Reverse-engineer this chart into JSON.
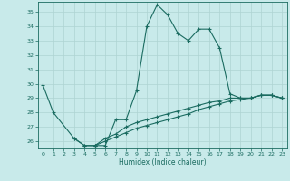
{
  "xlabel": "Humidex (Indice chaleur)",
  "bg_color": "#c8eaea",
  "grid_color": "#aed4d2",
  "line_color": "#1a6b60",
  "xlim": [
    -0.5,
    23.5
  ],
  "ylim": [
    25.5,
    35.7
  ],
  "yticks": [
    26,
    27,
    28,
    29,
    30,
    31,
    32,
    33,
    34,
    35
  ],
  "xticks": [
    0,
    1,
    2,
    3,
    4,
    5,
    6,
    7,
    8,
    9,
    10,
    11,
    12,
    13,
    14,
    15,
    16,
    17,
    18,
    19,
    20,
    21,
    22,
    23
  ],
  "series1_x": [
    0,
    1,
    3,
    4,
    5,
    6,
    7,
    8,
    9,
    10,
    11,
    12,
    13,
    14,
    15,
    16,
    17,
    18,
    19,
    20,
    21,
    22,
    23
  ],
  "series1_y": [
    29.9,
    28.0,
    26.2,
    25.7,
    25.7,
    25.7,
    27.5,
    27.5,
    29.5,
    34.0,
    35.5,
    34.8,
    33.5,
    33.0,
    33.8,
    33.8,
    32.5,
    29.3,
    29.0,
    29.0,
    29.2,
    29.2,
    29.0
  ],
  "series2_x": [
    3,
    4,
    5,
    6,
    7,
    8,
    9,
    10,
    11,
    12,
    13,
    14,
    15,
    16,
    17,
    18,
    19,
    20,
    21,
    22,
    23
  ],
  "series2_y": [
    26.2,
    25.7,
    25.7,
    26.2,
    26.5,
    27.0,
    27.3,
    27.5,
    27.7,
    27.9,
    28.1,
    28.3,
    28.5,
    28.7,
    28.8,
    29.0,
    29.0,
    29.0,
    29.2,
    29.2,
    29.0
  ],
  "series3_x": [
    5,
    6,
    7,
    8,
    9,
    10,
    11,
    12,
    13,
    14,
    15,
    16,
    17,
    18,
    19,
    20,
    21,
    22,
    23
  ],
  "series3_y": [
    25.7,
    26.0,
    26.3,
    26.6,
    26.9,
    27.1,
    27.3,
    27.5,
    27.7,
    27.9,
    28.2,
    28.4,
    28.6,
    28.8,
    28.9,
    29.0,
    29.2,
    29.2,
    29.0
  ]
}
